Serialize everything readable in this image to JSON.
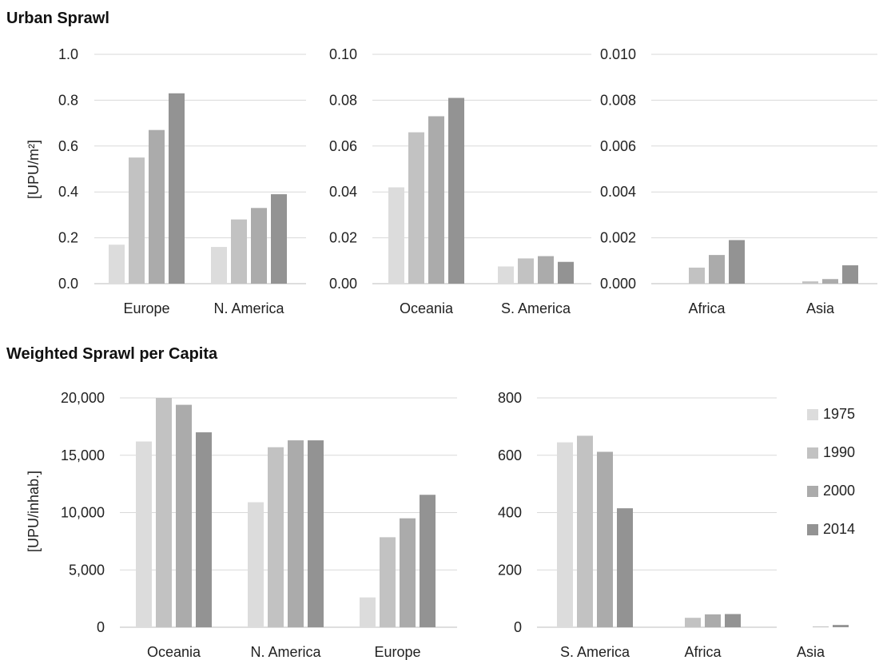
{
  "titles": {
    "top": "Urban Sprawl",
    "bottom": "Weighted Sprawl per Capita"
  },
  "legend": {
    "series": [
      "1975",
      "1990",
      "2000",
      "2014"
    ],
    "colors": [
      "#dcdcdc",
      "#c2c2c2",
      "#ababab",
      "#939393"
    ]
  },
  "chart_data": [
    {
      "type": "bar",
      "group": "Urban Sprawl",
      "ylabel": "[UPU/m²]",
      "ylim": [
        0,
        1.0
      ],
      "yticks": [
        "0.0",
        "0.2",
        "0.4",
        "0.6",
        "0.8",
        "1.0"
      ],
      "categories": [
        "Europe",
        "N. America"
      ],
      "series": [
        {
          "name": "1975",
          "values": [
            0.17,
            0.16
          ]
        },
        {
          "name": "1990",
          "values": [
            0.55,
            0.28
          ]
        },
        {
          "name": "2000",
          "values": [
            0.67,
            0.33
          ]
        },
        {
          "name": "2014",
          "values": [
            0.83,
            0.39
          ]
        }
      ]
    },
    {
      "type": "bar",
      "group": "Urban Sprawl",
      "ylim": [
        0,
        0.1
      ],
      "yticks": [
        "0.00",
        "0.02",
        "0.04",
        "0.06",
        "0.08",
        "0.10"
      ],
      "categories": [
        "Oceania",
        "S. America"
      ],
      "series": [
        {
          "name": "1975",
          "values": [
            0.042,
            0.0075
          ]
        },
        {
          "name": "1990",
          "values": [
            0.066,
            0.011
          ]
        },
        {
          "name": "2000",
          "values": [
            0.073,
            0.012
          ]
        },
        {
          "name": "2014",
          "values": [
            0.081,
            0.0095
          ]
        }
      ]
    },
    {
      "type": "bar",
      "group": "Urban Sprawl",
      "ylim": [
        0,
        0.01
      ],
      "yticks": [
        "0.000",
        "0.002",
        "0.004",
        "0.006",
        "0.008",
        "0.010"
      ],
      "categories": [
        "Africa",
        "Asia"
      ],
      "series": [
        {
          "name": "1975",
          "values": [
            0.0,
            0.0
          ]
        },
        {
          "name": "1990",
          "values": [
            0.0007,
            0.0001
          ]
        },
        {
          "name": "2000",
          "values": [
            0.00125,
            0.0002
          ]
        },
        {
          "name": "2014",
          "values": [
            0.0019,
            0.0008
          ]
        }
      ]
    },
    {
      "type": "bar",
      "group": "Weighted Sprawl per Capita",
      "ylabel": "[UPU/inhab.]",
      "ylim": [
        0,
        20000
      ],
      "yticks": [
        "0",
        "5,000",
        "10,000",
        "15,000",
        "20,000"
      ],
      "categories": [
        "Oceania",
        "N. America",
        "Europe"
      ],
      "series": [
        {
          "name": "1975",
          "values": [
            16200,
            10900,
            2600
          ]
        },
        {
          "name": "1990",
          "values": [
            20000,
            15700,
            7850
          ]
        },
        {
          "name": "2000",
          "values": [
            19400,
            16300,
            9500
          ]
        },
        {
          "name": "2014",
          "values": [
            17000,
            16300,
            11550
          ]
        }
      ]
    },
    {
      "type": "bar",
      "group": "Weighted Sprawl per Capita",
      "ylim": [
        0,
        800
      ],
      "yticks": [
        "0",
        "200",
        "400",
        "600",
        "800"
      ],
      "categories": [
        "S. America",
        "Africa",
        "Asia"
      ],
      "series": [
        {
          "name": "1975",
          "values": [
            645,
            0,
            0
          ]
        },
        {
          "name": "1990",
          "values": [
            668,
            33,
            0
          ]
        },
        {
          "name": "2000",
          "values": [
            612,
            45,
            2
          ]
        },
        {
          "name": "2014",
          "values": [
            415,
            46,
            8
          ]
        }
      ]
    }
  ]
}
